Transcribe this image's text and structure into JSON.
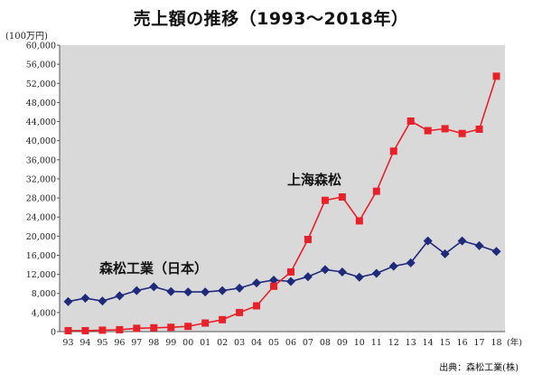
{
  "title": "売上額の推移（1993～2018年）",
  "unit_label": "(100万円)",
  "source": "出典：森松工業(株)",
  "colors": {
    "plot_bg": "#d9d9d9",
    "shinsho": "#1f2a7a",
    "shanghai": "#e8202a"
  },
  "chart_data": {
    "type": "line",
    "title": "売上額の推移（1993～2018年）",
    "ylabel": "(100万円)",
    "xlabel": "(年)",
    "ylim": [
      0,
      60000
    ],
    "y_ticks": [
      "0",
      "4,000",
      "8,000",
      "12,000",
      "16,000",
      "20,000",
      "24,000",
      "28,000",
      "32,000",
      "36,000",
      "40,000",
      "44,000",
      "48,000",
      "52,000",
      "56,000",
      "60,000"
    ],
    "categories": [
      "93",
      "94",
      "95",
      "96",
      "97",
      "98",
      "99",
      "00",
      "01",
      "02",
      "03",
      "04",
      "05",
      "06",
      "07",
      "08",
      "09",
      "10",
      "11",
      "12",
      "13",
      "14",
      "15",
      "16",
      "17",
      "18"
    ],
    "grid": false,
    "series": [
      {
        "name": "森松工業（日本）",
        "marker": "diamond",
        "values": [
          6300,
          7000,
          6400,
          7500,
          8600,
          9400,
          8400,
          8300,
          8300,
          8600,
          9100,
          10200,
          10800,
          10500,
          11500,
          13000,
          12500,
          11400,
          12200,
          13700,
          14400,
          19000,
          16300,
          19000,
          18000,
          16800
        ]
      },
      {
        "name": "上海森松",
        "marker": "square",
        "values": [
          200,
          200,
          300,
          400,
          700,
          800,
          900,
          1100,
          1800,
          2500,
          4000,
          5400,
          9500,
          12500,
          19300,
          27500,
          28200,
          23200,
          29400,
          37800,
          44100,
          42100,
          42500,
          41500,
          42400,
          53500
        ]
      }
    ]
  }
}
